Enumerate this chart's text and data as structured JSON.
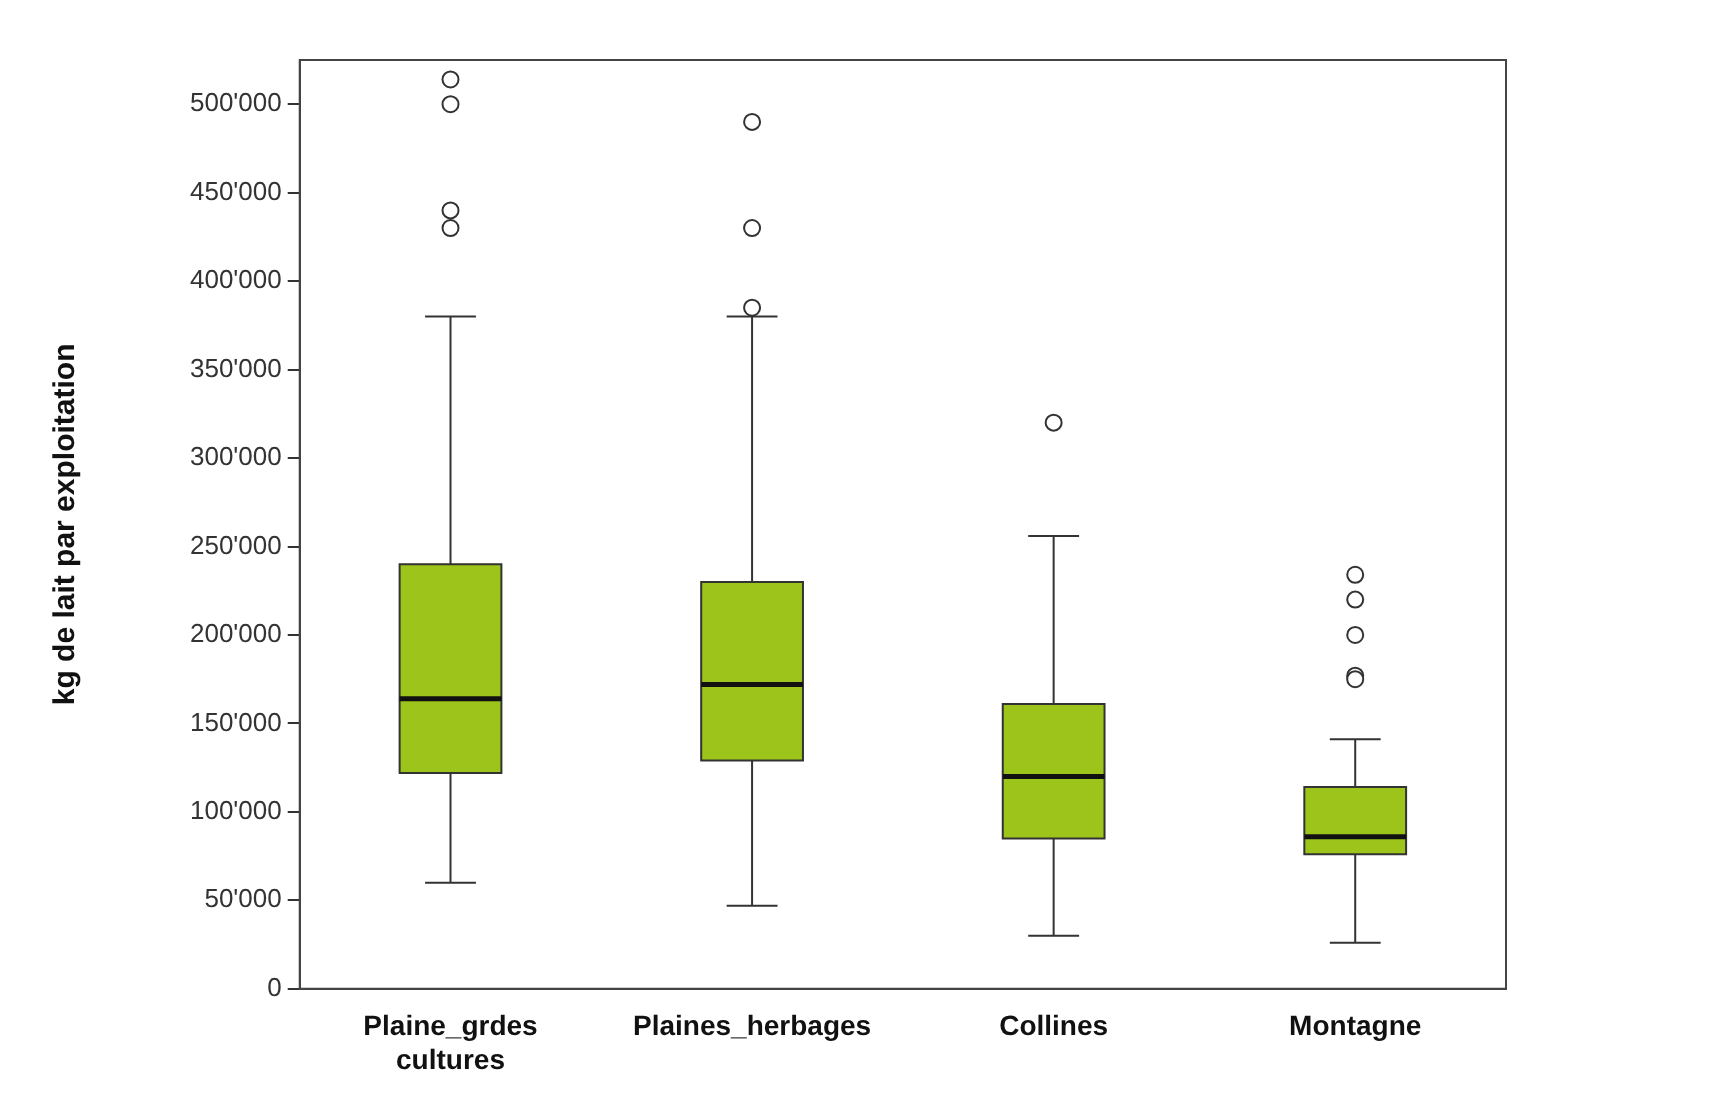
{
  "chart_data": {
    "type": "box",
    "ylabel": "kg de lait par exploitation",
    "categories": [
      "Plaine_grdes cultures",
      "Plaines_herbages",
      "Collines",
      "Montagne"
    ],
    "color": "#9dc41a",
    "boxes": [
      {
        "low": 60000,
        "q1": 122000,
        "median": 164000,
        "q3": 240000,
        "high": 380000,
        "outliers": [
          430000,
          440000,
          500000,
          514000
        ]
      },
      {
        "low": 47000,
        "q1": 129000,
        "median": 172000,
        "q3": 230000,
        "high": 380000,
        "outliers": [
          385000,
          430000,
          490000
        ]
      },
      {
        "low": 30000,
        "q1": 85000,
        "median": 120000,
        "q3": 161000,
        "high": 256000,
        "outliers": [
          320000
        ]
      },
      {
        "low": 26000,
        "q1": 76000,
        "median": 86000,
        "q3": 114000,
        "high": 141000,
        "outliers": [
          175000,
          177000,
          200000,
          220000,
          234000
        ]
      }
    ],
    "ylim": [
      0,
      525000
    ],
    "yticks": [
      {
        "value": 0,
        "label": "0"
      },
      {
        "value": 50000,
        "label": "50'000"
      },
      {
        "value": 100000,
        "label": "100'000"
      },
      {
        "value": 150000,
        "label": "150'000"
      },
      {
        "value": 200000,
        "label": "200'000"
      },
      {
        "value": 250000,
        "label": "250'000"
      },
      {
        "value": 300000,
        "label": "300'000"
      },
      {
        "value": 350000,
        "label": "350'000"
      },
      {
        "value": 400000,
        "label": "400'000"
      },
      {
        "value": 450000,
        "label": "450'000"
      },
      {
        "value": 500000,
        "label": "500'000"
      }
    ],
    "grid": false,
    "legend": false,
    "marker": "circle"
  }
}
